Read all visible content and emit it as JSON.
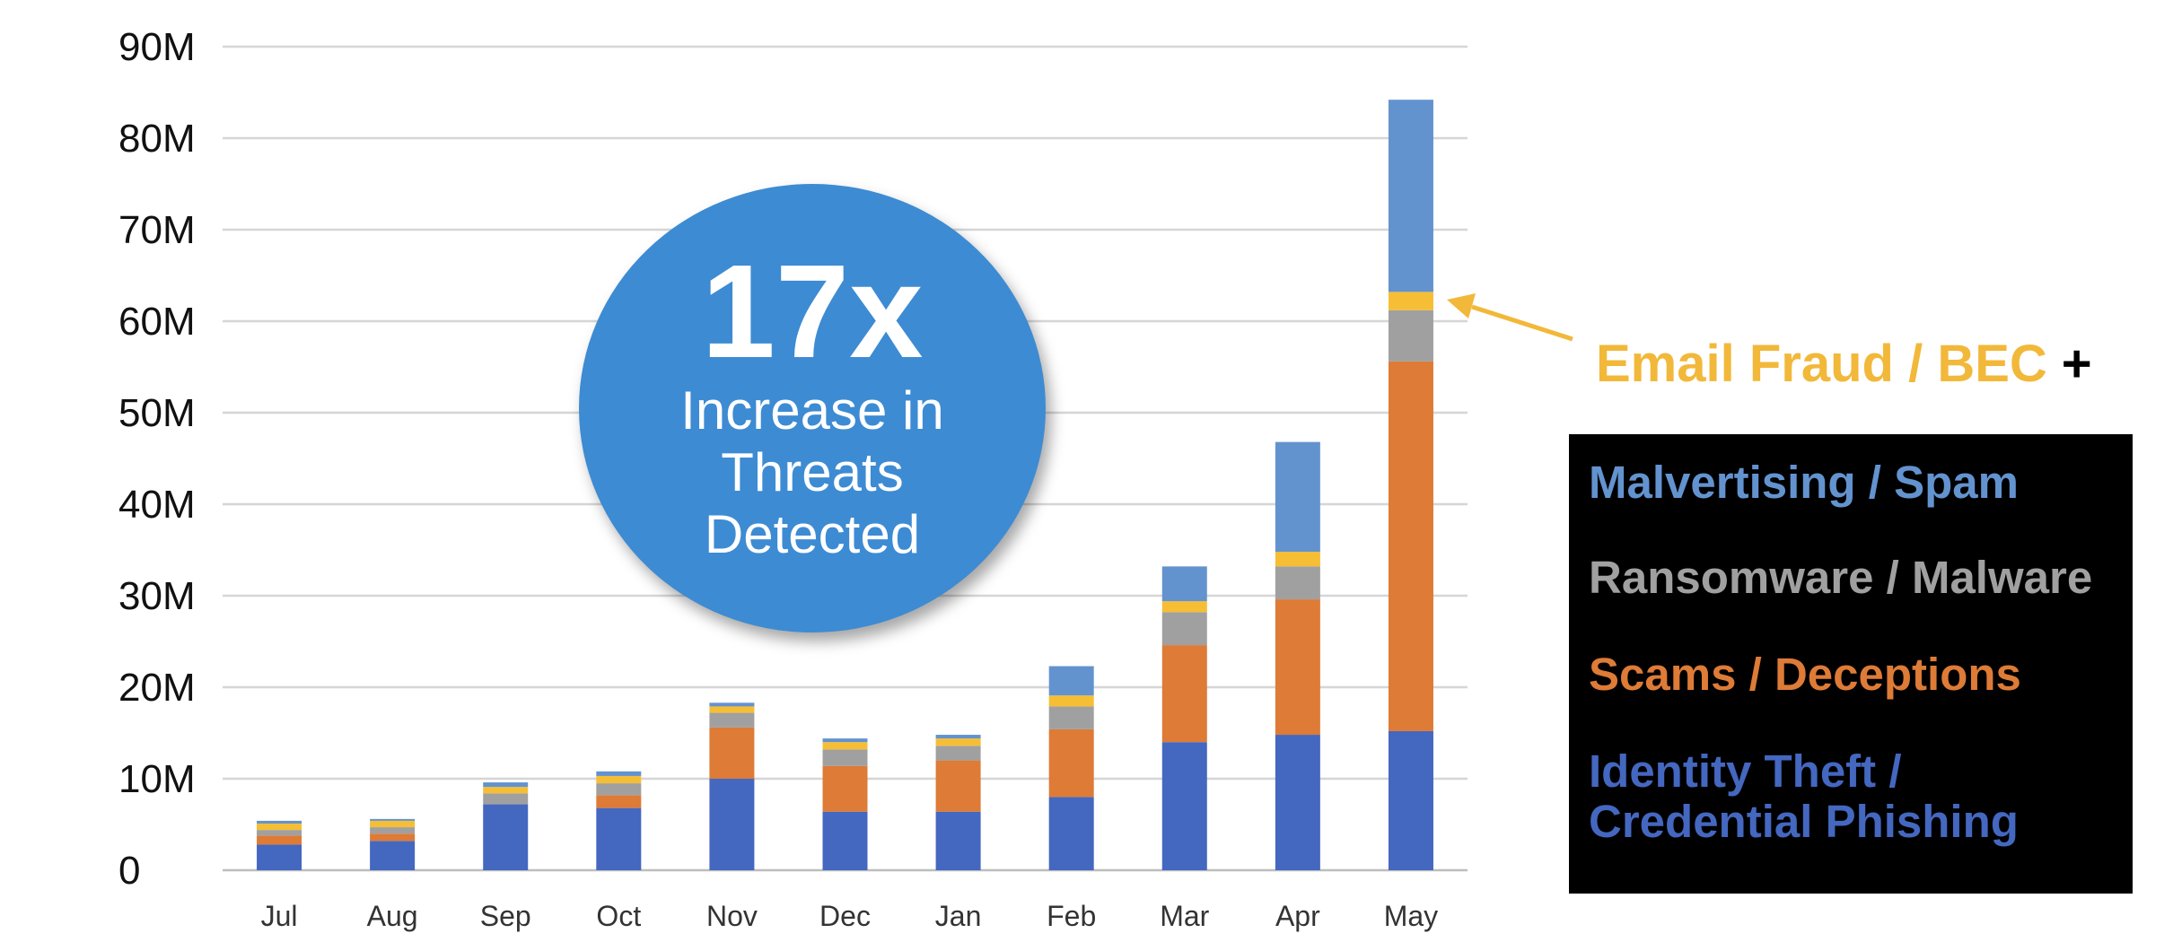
{
  "chart_data": {
    "type": "bar",
    "stacked": true,
    "categories": [
      "Jul",
      "Aug",
      "Sep",
      "Oct",
      "Nov",
      "Dec",
      "Jan",
      "Feb",
      "Mar",
      "Apr",
      "May"
    ],
    "y_tick_labels": [
      "0",
      "10M",
      "20M",
      "30M",
      "40M",
      "50M",
      "60M",
      "70M",
      "80M",
      "90M"
    ],
    "ylim": [
      0,
      90000000
    ],
    "grid": true,
    "series": [
      {
        "name": "Identity Theft / Credential Phishing",
        "color": "#4467c0",
        "values": [
          2800000,
          3200000,
          7200000,
          6800000,
          10000000,
          6400000,
          6400000,
          8000000,
          14000000,
          14800000,
          15200000
        ]
      },
      {
        "name": "Scams / Deceptions",
        "color": "#dd7b37",
        "values": [
          1000000,
          800000,
          0,
          1400000,
          5600000,
          5000000,
          5600000,
          7400000,
          10600000,
          14800000,
          40400000
        ]
      },
      {
        "name": "Ransomware / Malware",
        "color": "#a0a0a0",
        "values": [
          600000,
          700000,
          1200000,
          1300000,
          1600000,
          1800000,
          1600000,
          2500000,
          3600000,
          3600000,
          5600000
        ]
      },
      {
        "name": "Email Fraud / BEC",
        "color": "#f6be35",
        "values": [
          700000,
          700000,
          700000,
          800000,
          700000,
          800000,
          800000,
          1200000,
          1200000,
          1600000,
          2000000
        ]
      },
      {
        "name": "Malvertising / Spam",
        "color": "#6393cf",
        "values": [
          300000,
          200000,
          500000,
          500000,
          400000,
          400000,
          400000,
          3200000,
          3800000,
          12000000,
          21000000
        ]
      }
    ]
  },
  "badge": {
    "multiplier": "17x",
    "line1": "Increase in",
    "line2": "Threats",
    "line3": "Detected"
  },
  "callout": {
    "label": "Email Fraud / BEC",
    "plus": "+",
    "color": "#f2b83a"
  },
  "legend": [
    {
      "label": "Malvertising / Spam",
      "color": "#6393cf"
    },
    {
      "label": "Ransomware / Malware",
      "color": "#a0a0a0"
    },
    {
      "label": "Scams / Deceptions",
      "color": "#dd7b37"
    },
    {
      "label": "Identity Theft /",
      "color": "#4467c0"
    },
    {
      "label": "Credential Phishing",
      "color": "#4467c0"
    }
  ]
}
